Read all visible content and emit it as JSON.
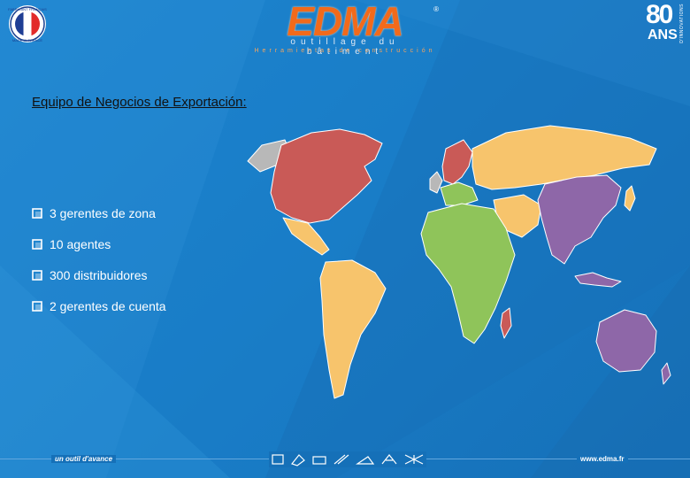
{
  "header": {
    "badge_fr": {
      "top_text": "FABRICANT FRANÇAIS",
      "bottom_text": "MADE IN FRANCE"
    },
    "logo": {
      "text": "EDMA",
      "registered": "®"
    },
    "tagline_fr": "outillage du bâtiment",
    "tagline_es": "Herramientas de construcción",
    "anniversary": {
      "number": "80",
      "label": "ANS",
      "side": "D'INNOVATIONS"
    }
  },
  "main": {
    "heading": "Equipo de Negocios de Exportación:",
    "bullets": [
      "3 gerentes de zona",
      "10 agentes",
      "300 distribuidores",
      "2 gerentes de cuenta"
    ]
  },
  "footer": {
    "left": "un outil d'avance",
    "right": "www.edma.fr"
  },
  "colors": {
    "background": "#1a7cc6",
    "north_america_europe": "#c95a57",
    "latin_russia_middle_east": "#f7c46c",
    "africa": "#8fc45a",
    "asia_oceania": "#8e67a8",
    "greenland_uk": "#b8b8b8",
    "logo": "#f26a1b"
  },
  "icons": [
    "flag-badge-icon",
    "bullet-box-icon",
    "tool-icons"
  ]
}
